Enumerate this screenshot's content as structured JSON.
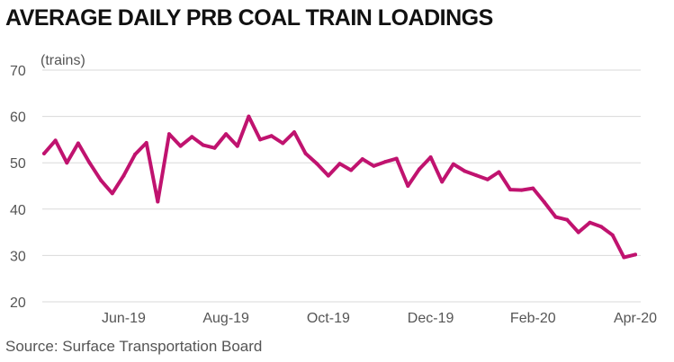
{
  "title": "AVERAGE DAILY PRB COAL TRAIN LOADINGS",
  "source": "Source: Surface Transportation Board",
  "chart_data": {
    "type": "line",
    "title": "AVERAGE DAILY PRB COAL TRAIN LOADINGS",
    "ylabel": "(trains)",
    "xlabel": "",
    "ylim": [
      20,
      70
    ],
    "yticks": [
      20,
      30,
      40,
      50,
      60,
      70
    ],
    "xtick_labels": [
      "Jun-19",
      "Aug-19",
      "Oct-19",
      "Dec-19",
      "Feb-20",
      "Apr-20"
    ],
    "xtick_index": [
      7,
      16,
      25,
      34,
      43,
      52
    ],
    "grid": "horizontal",
    "color": "#c0136f",
    "series": [
      {
        "values": [
          52,
          54.8,
          50,
          54.2,
          50,
          46.2,
          43.4,
          47.2,
          51.8,
          54.3,
          41.6,
          56.2,
          53.6,
          55.6,
          53.8,
          53.2,
          56.2,
          53.6,
          60,
          55,
          55.8,
          54.2,
          56.6,
          52,
          49.8,
          47.2,
          49.8,
          48.4,
          50.8,
          49.3,
          50.2,
          50.9,
          45,
          48.6,
          51.2,
          45.9,
          49.7,
          48.2,
          47.3,
          46.4,
          48,
          44.2,
          44.1,
          44.5,
          41.5,
          38.3,
          37.7,
          35,
          37.1,
          36.2,
          34.4,
          29.6,
          30.2
        ]
      }
    ]
  }
}
